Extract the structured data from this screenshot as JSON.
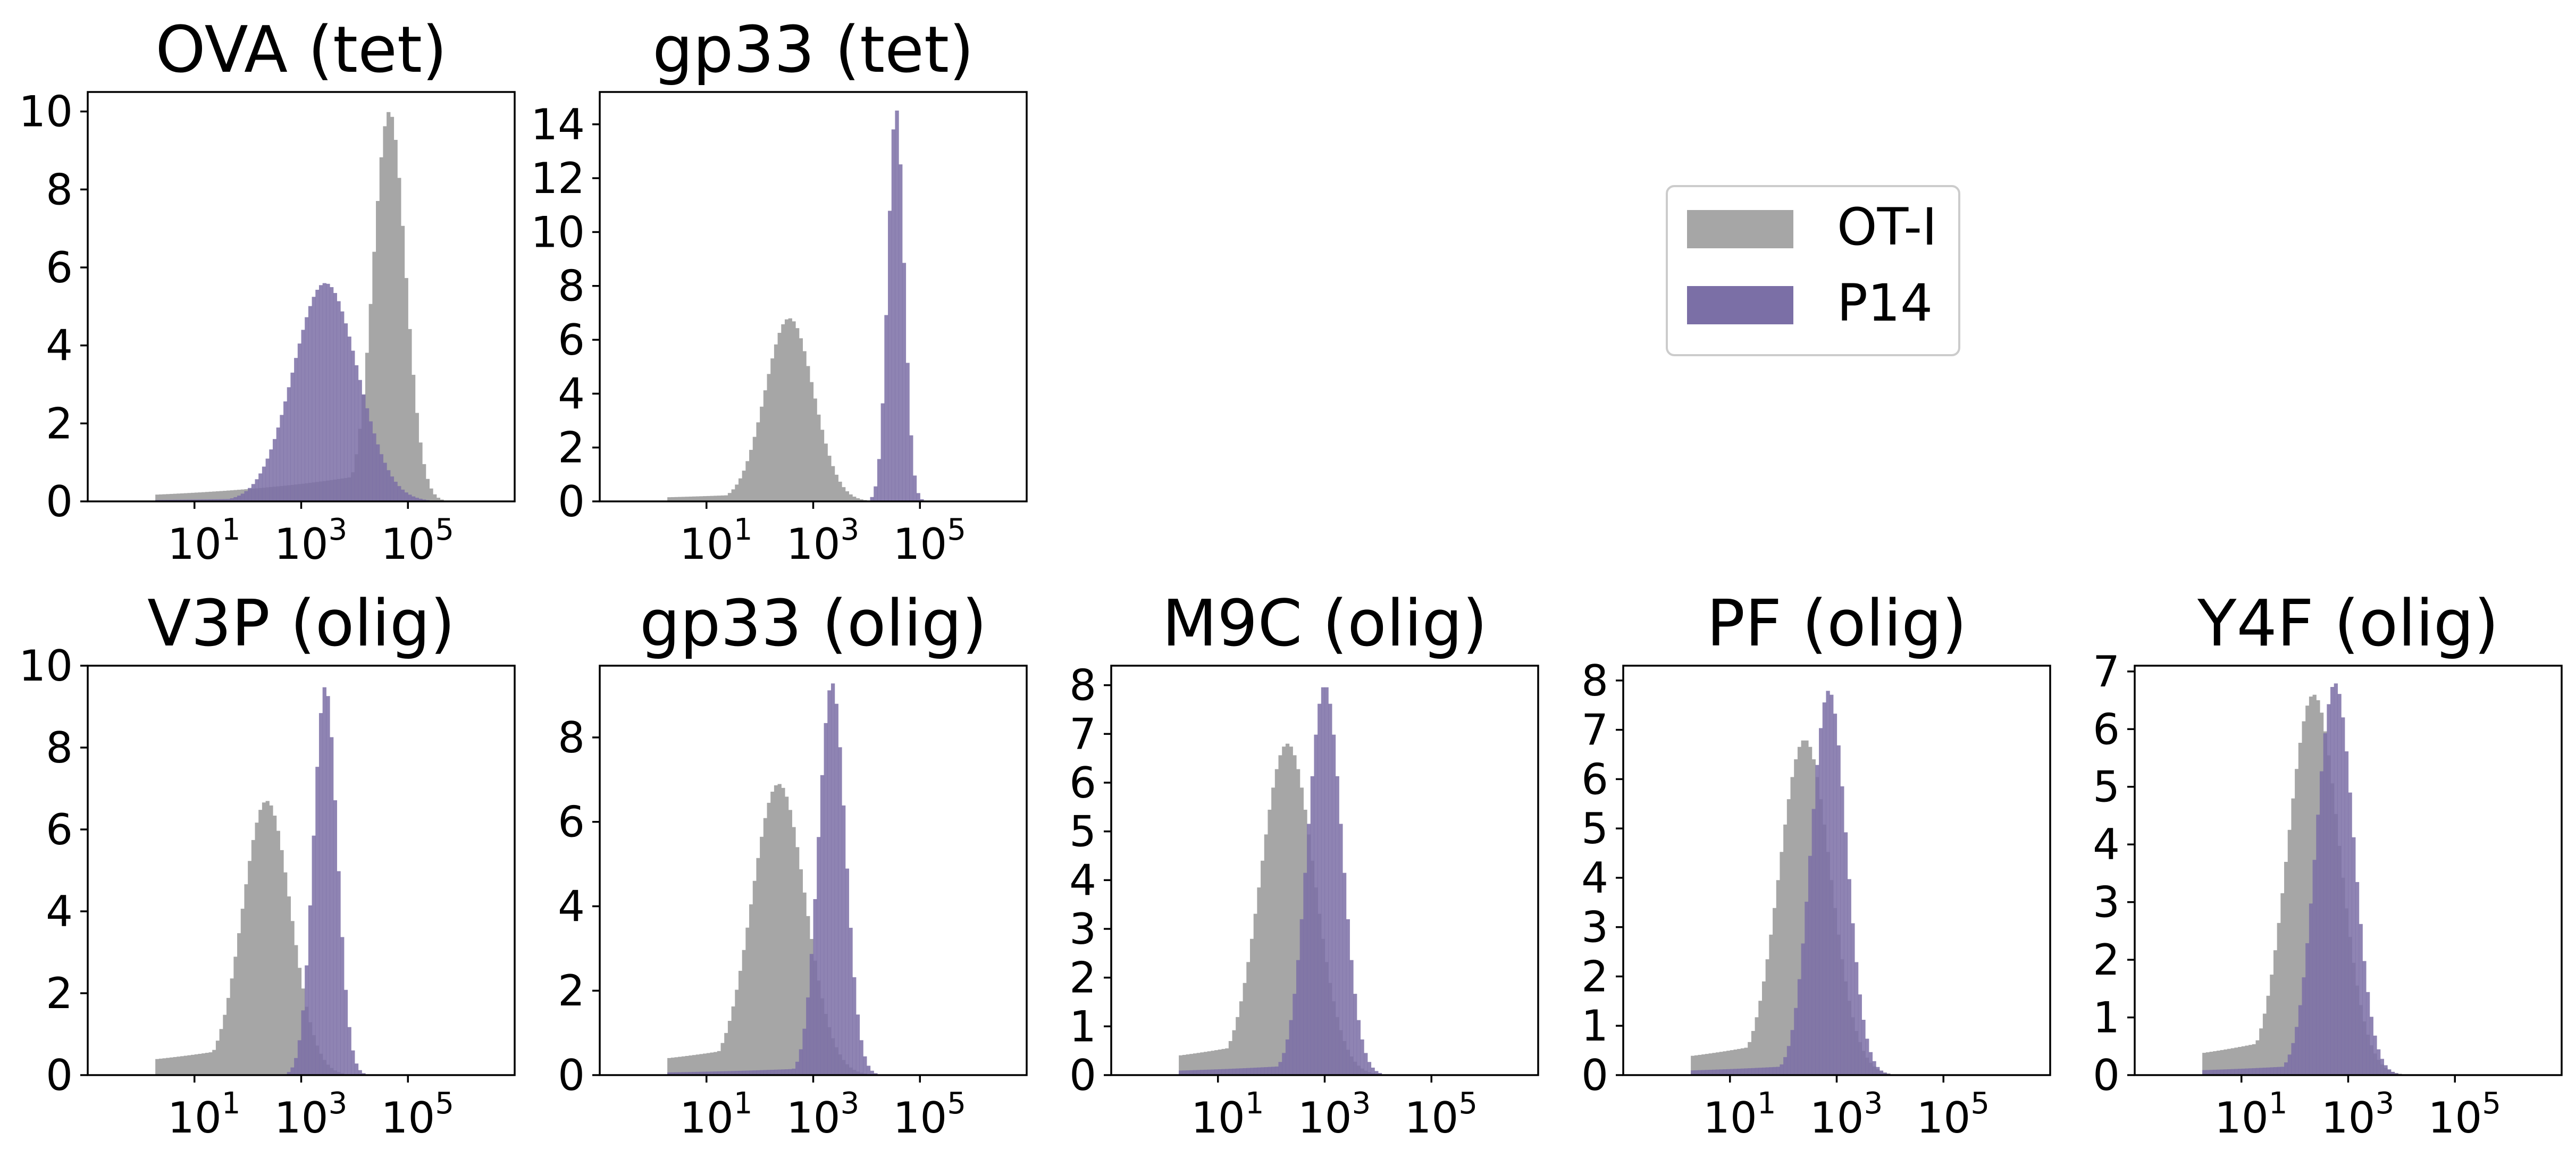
{
  "colors": {
    "OT-I": "#a6a6a6",
    "P14": "#7b6fa6"
  },
  "legend": {
    "placement": "upper-right-empty-area",
    "items": [
      {
        "label": "OT-I",
        "color": "#a6a6a6"
      },
      {
        "label": "P14",
        "color": "#7b6fa6"
      }
    ]
  },
  "chart_data": [
    {
      "type": "histogram",
      "title": "OVA (tet)",
      "xscale": "log",
      "xlim": [
        0.1,
        10000000
      ],
      "ylim": [
        0,
        10.5
      ],
      "yticks": [
        0,
        2,
        4,
        6,
        8,
        10
      ],
      "xtick_labels": [
        {
          "value": 10,
          "base": "10",
          "exp": "1"
        },
        {
          "value": 1000,
          "base": "10",
          "exp": "3"
        },
        {
          "value": 100000,
          "base": "10",
          "exp": "5"
        }
      ],
      "series": [
        {
          "name": "OT-I",
          "color": "#a6a6a6",
          "center": 4.65,
          "sigma": 0.3,
          "peak": 10.0,
          "left_tail": 0.08
        },
        {
          "name": "P14",
          "color": "#7b6fa6",
          "center": 3.45,
          "sigma": 0.6,
          "peak": 5.6,
          "left_tail": 0.02
        }
      ]
    },
    {
      "type": "histogram",
      "title": "gp33 (tet)",
      "xscale": "log",
      "xlim": [
        0.1,
        10000000
      ],
      "ylim": [
        0,
        15.2
      ],
      "yticks": [
        0,
        2,
        4,
        6,
        8,
        10,
        12,
        14
      ],
      "xtick_labels": [
        {
          "value": 10,
          "base": "10",
          "exp": "1"
        },
        {
          "value": 1000,
          "base": "10",
          "exp": "3"
        },
        {
          "value": 100000,
          "base": "10",
          "exp": "5"
        }
      ],
      "series": [
        {
          "name": "OT-I",
          "color": "#a6a6a6",
          "center": 2.55,
          "sigma": 0.45,
          "peak": 6.8,
          "left_tail": 0.05
        },
        {
          "name": "P14",
          "color": "#7b6fa6",
          "center": 4.55,
          "sigma": 0.15,
          "peak": 14.6,
          "left_tail": 0.0
        }
      ]
    },
    {
      "type": "histogram",
      "title": "V3P (olig)",
      "xscale": "log",
      "xlim": [
        0.1,
        10000000
      ],
      "ylim": [
        0,
        10.0
      ],
      "yticks": [
        0,
        2,
        4,
        6,
        8,
        10
      ],
      "xtick_labels": [
        {
          "value": 10,
          "base": "10",
          "exp": "1"
        },
        {
          "value": 1000,
          "base": "10",
          "exp": "3"
        },
        {
          "value": 100000,
          "base": "10",
          "exp": "5"
        }
      ],
      "series": [
        {
          "name": "OT-I",
          "color": "#a6a6a6",
          "center": 2.35,
          "sigma": 0.45,
          "peak": 6.7,
          "left_tail": 0.12
        },
        {
          "name": "P14",
          "color": "#7b6fa6",
          "center": 3.45,
          "sigma": 0.22,
          "peak": 9.5,
          "left_tail": 0.0
        }
      ]
    },
    {
      "type": "histogram",
      "title": "gp33 (olig)",
      "xscale": "log",
      "xlim": [
        0.1,
        10000000
      ],
      "ylim": [
        0,
        9.7
      ],
      "yticks": [
        0,
        2,
        4,
        6,
        8
      ],
      "xtick_labels": [
        {
          "value": 10,
          "base": "10",
          "exp": "1"
        },
        {
          "value": 1000,
          "base": "10",
          "exp": "3"
        },
        {
          "value": 100000,
          "base": "10",
          "exp": "5"
        }
      ],
      "series": [
        {
          "name": "OT-I",
          "color": "#a6a6a6",
          "center": 2.35,
          "sigma": 0.5,
          "peak": 6.9,
          "left_tail": 0.12
        },
        {
          "name": "P14",
          "color": "#7b6fa6",
          "center": 3.35,
          "sigma": 0.25,
          "peak": 9.3,
          "left_tail": 0.02
        }
      ]
    },
    {
      "type": "histogram",
      "title": "M9C (olig)",
      "xscale": "log",
      "xlim": [
        0.1,
        10000000
      ],
      "ylim": [
        0,
        8.4
      ],
      "yticks": [
        0,
        1,
        2,
        3,
        4,
        5,
        6,
        7,
        8
      ],
      "xtick_labels": [
        {
          "value": 10,
          "base": "10",
          "exp": "1"
        },
        {
          "value": 1000,
          "base": "10",
          "exp": "3"
        },
        {
          "value": 100000,
          "base": "10",
          "exp": "5"
        }
      ],
      "series": [
        {
          "name": "OT-I",
          "color": "#a6a6a6",
          "center": 2.3,
          "sigma": 0.5,
          "peak": 6.8,
          "left_tail": 0.12
        },
        {
          "name": "P14",
          "color": "#7b6fa6",
          "center": 3.0,
          "sigma": 0.32,
          "peak": 8.0,
          "left_tail": 0.03
        }
      ]
    },
    {
      "type": "histogram",
      "title": "PF (olig)",
      "xscale": "log",
      "xlim": [
        0.1,
        10000000
      ],
      "ylim": [
        0,
        8.3
      ],
      "yticks": [
        0,
        1,
        2,
        3,
        4,
        5,
        6,
        7,
        8
      ],
      "xtick_labels": [
        {
          "value": 10,
          "base": "10",
          "exp": "1"
        },
        {
          "value": 1000,
          "base": "10",
          "exp": "3"
        },
        {
          "value": 100000,
          "base": "10",
          "exp": "5"
        }
      ],
      "series": [
        {
          "name": "OT-I",
          "color": "#a6a6a6",
          "center": 2.4,
          "sigma": 0.48,
          "peak": 6.8,
          "left_tail": 0.12
        },
        {
          "name": "P14",
          "color": "#7b6fa6",
          "center": 2.85,
          "sigma": 0.33,
          "peak": 7.8,
          "left_tail": 0.03
        }
      ]
    },
    {
      "type": "histogram",
      "title": "Y4F (olig)",
      "xscale": "log",
      "xlim": [
        0.1,
        10000000
      ],
      "ylim": [
        0,
        7.1
      ],
      "yticks": [
        0,
        1,
        2,
        3,
        4,
        5,
        6,
        7
      ],
      "xtick_labels": [
        {
          "value": 10,
          "base": "10",
          "exp": "1"
        },
        {
          "value": 1000,
          "base": "10",
          "exp": "3"
        },
        {
          "value": 100000,
          "base": "10",
          "exp": "5"
        }
      ],
      "series": [
        {
          "name": "OT-I",
          "color": "#a6a6a6",
          "center": 2.35,
          "sigma": 0.48,
          "peak": 6.6,
          "left_tail": 0.12
        },
        {
          "name": "P14",
          "color": "#7b6fa6",
          "center": 2.75,
          "sigma": 0.35,
          "peak": 6.8,
          "left_tail": 0.03
        }
      ]
    }
  ]
}
